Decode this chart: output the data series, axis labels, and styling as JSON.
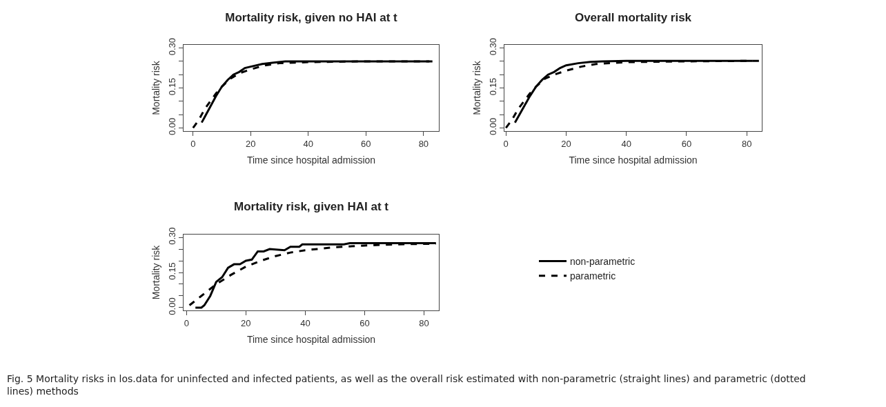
{
  "chart_data": [
    {
      "type": "line",
      "title": "Mortality risk, given no HAI at t",
      "xlabel": "Time since hospital admission",
      "ylabel": "Mortality risk",
      "xlim": [
        -3.3,
        85.3
      ],
      "xticks": [
        0,
        20,
        40,
        60,
        80
      ],
      "ylim": [
        -0.012,
        0.312
      ],
      "yticks": [
        {
          "value": 0,
          "label": "0.00"
        },
        {
          "value": 0.05,
          "label": null
        },
        {
          "value": 0.1,
          "label": null
        },
        {
          "value": 0.15,
          "label": "0.15"
        },
        {
          "value": 0.2,
          "label": null
        },
        {
          "value": 0.25,
          "label": null
        },
        {
          "value": 0.3,
          "label": "0.30"
        }
      ],
      "grid": false,
      "legend": false,
      "series": [
        {
          "color": "#000000",
          "line_style": "solid",
          "x": [
            3,
            4,
            6,
            8,
            10,
            12,
            14,
            16,
            18,
            20,
            24,
            28,
            32,
            40,
            60,
            82
          ],
          "values": [
            0.02,
            0.04,
            0.08,
            0.12,
            0.155,
            0.18,
            0.2,
            0.21,
            0.225,
            0.23,
            0.24,
            0.245,
            0.25,
            0.25,
            0.25,
            0.25
          ]
        },
        {
          "color": "#000000",
          "line_style": "dashed",
          "x": [
            0,
            2,
            4,
            6,
            8,
            10,
            13,
            16,
            20,
            25,
            30,
            40,
            60,
            85
          ],
          "values": [
            0,
            0.03,
            0.07,
            0.1,
            0.13,
            0.155,
            0.185,
            0.205,
            0.22,
            0.235,
            0.243,
            0.247,
            0.25,
            0.25
          ]
        }
      ]
    },
    {
      "type": "line",
      "title": "Overall mortality risk",
      "xlabel": "Time since hospital admission",
      "ylabel": "Mortality risk",
      "xlim": [
        -0.5,
        85
      ],
      "xticks": [
        0,
        20,
        40,
        60,
        80
      ],
      "ylim": [
        -0.012,
        0.312
      ],
      "yticks": [
        {
          "value": 0,
          "label": "0.00"
        },
        {
          "value": 0.05,
          "label": null
        },
        {
          "value": 0.1,
          "label": null
        },
        {
          "value": 0.15,
          "label": "0.15"
        },
        {
          "value": 0.2,
          "label": null
        },
        {
          "value": 0.25,
          "label": null
        },
        {
          "value": 0.3,
          "label": "0.30"
        }
      ],
      "grid": false,
      "legend": false,
      "series": [
        {
          "color": "#000000",
          "line_style": "solid",
          "x": [
            3,
            4,
            6,
            8,
            10,
            12,
            14,
            16,
            18,
            20,
            24,
            28,
            32,
            40,
            60,
            82
          ],
          "values": [
            0.02,
            0.04,
            0.08,
            0.12,
            0.155,
            0.18,
            0.2,
            0.21,
            0.225,
            0.235,
            0.243,
            0.248,
            0.25,
            0.252,
            0.252,
            0.252
          ]
        },
        {
          "color": "#000000",
          "line_style": "dashed",
          "x": [
            0,
            2,
            4,
            6,
            8,
            10,
            13,
            16,
            20,
            25,
            30,
            40,
            60,
            85
          ],
          "values": [
            0,
            0.03,
            0.07,
            0.1,
            0.13,
            0.155,
            0.185,
            0.2,
            0.215,
            0.23,
            0.24,
            0.247,
            0.25,
            0.252
          ]
        }
      ]
    },
    {
      "type": "line",
      "title": "Mortality risk, given HAI at t",
      "xlabel": "Time since hospital admission",
      "ylabel": "Mortality risk",
      "xlim": [
        -1,
        85
      ],
      "xticks": [
        0,
        20,
        40,
        60,
        80
      ],
      "ylim": [
        -0.012,
        0.312
      ],
      "yticks": [
        {
          "value": 0,
          "label": "0.00"
        },
        {
          "value": 0.05,
          "label": null
        },
        {
          "value": 0.1,
          "label": null
        },
        {
          "value": 0.15,
          "label": "0.15"
        },
        {
          "value": 0.2,
          "label": null
        },
        {
          "value": 0.25,
          "label": null
        },
        {
          "value": 0.3,
          "label": "0.30"
        }
      ],
      "grid": false,
      "legend": "right",
      "annotations": [
        "Fig. 5 Mortality risks in los.data for uninfected and infected patients, as well as the overall risk estimated with non-parametric (straight lines) and parametric (dotted lines) methods"
      ],
      "series": [
        {
          "name": "non-parametric",
          "color": "#000000",
          "line_style": "solid",
          "x": [
            3,
            5,
            6,
            8,
            10,
            12,
            14,
            16,
            18,
            20,
            22,
            24,
            26,
            28,
            33,
            35,
            38,
            39,
            53,
            55,
            84
          ],
          "values": [
            0,
            0,
            0.01,
            0.05,
            0.11,
            0.13,
            0.17,
            0.185,
            0.185,
            0.2,
            0.205,
            0.24,
            0.24,
            0.25,
            0.245,
            0.26,
            0.26,
            0.27,
            0.27,
            0.275,
            0.275
          ]
        },
        {
          "name": "parametric",
          "color": "#000000",
          "line_style": "dashed",
          "x": [
            1,
            5,
            10,
            15,
            20,
            25,
            30,
            35,
            40,
            50,
            60,
            70,
            84
          ],
          "values": [
            0.01,
            0.05,
            0.1,
            0.14,
            0.175,
            0.2,
            0.22,
            0.235,
            0.245,
            0.258,
            0.265,
            0.27,
            0.273
          ]
        }
      ]
    }
  ]
}
